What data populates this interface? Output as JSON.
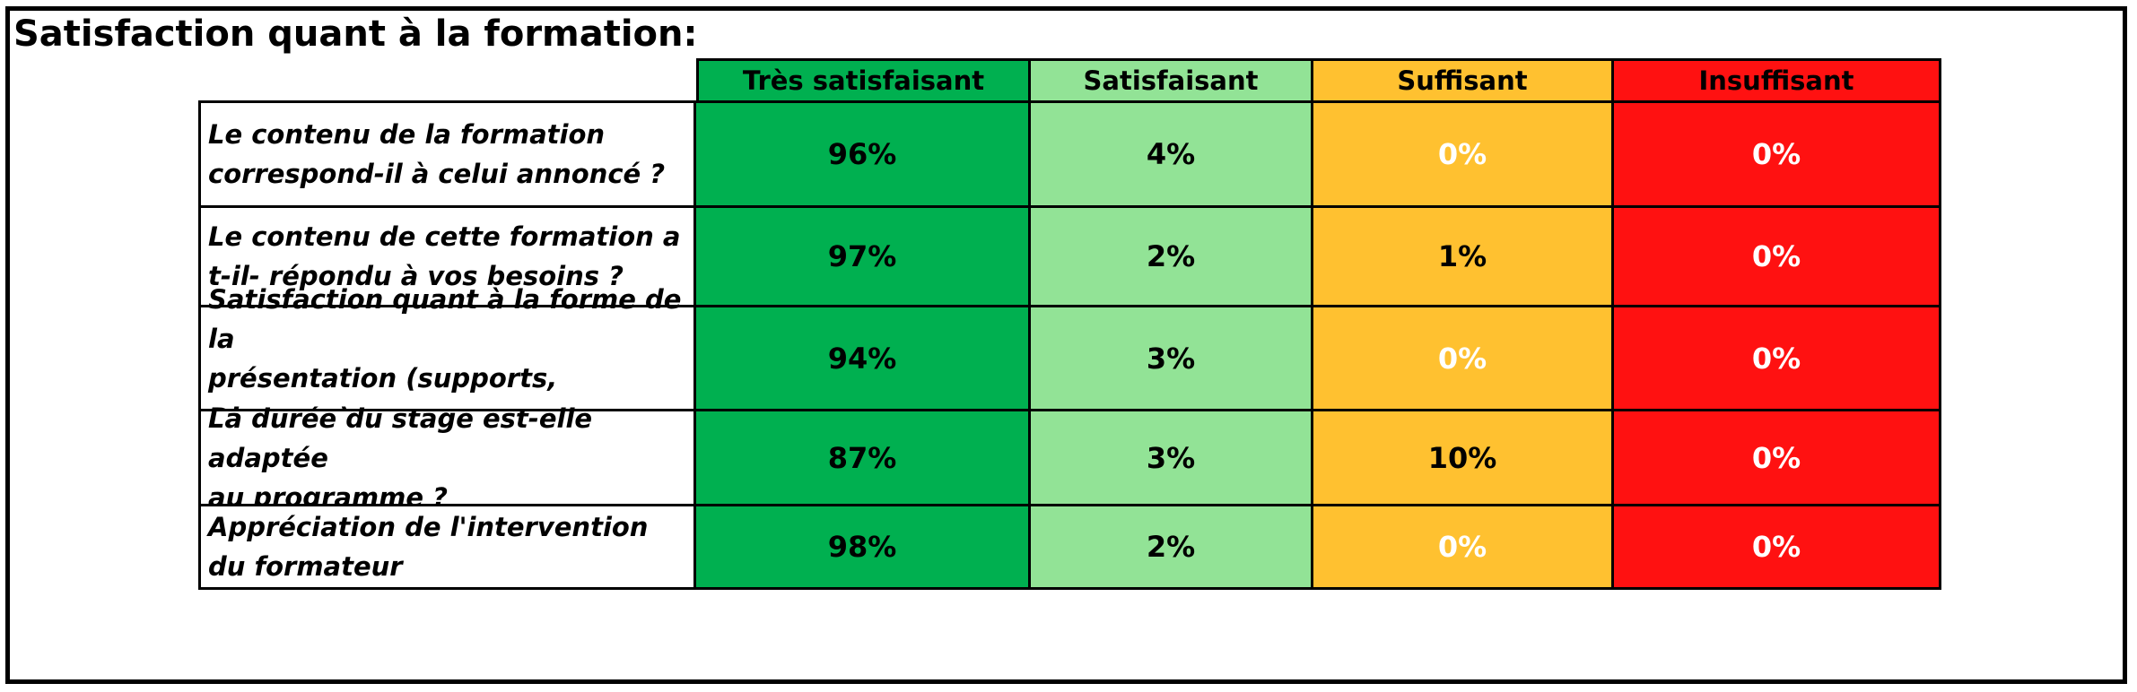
{
  "title": "Satisfaction quant à la formation:",
  "columns": [
    "Très satisfaisant",
    "Satisfaisant",
    "Suffisant",
    "Insuffisant"
  ],
  "colors": {
    "tres_satisfaisant": "#00b050",
    "satisfaisant": "#92e396",
    "suffisant": "#ffc130",
    "insuffisant": "#ff1111"
  },
  "rows": [
    {
      "question": "Le contenu de la formation\ncorrespond-il à celui annoncé ?",
      "values": [
        "96%",
        "4%",
        "0%",
        "0%"
      ]
    },
    {
      "question": "Le contenu de cette formation a\nt-il- répondu à vos besoins ?",
      "values": [
        "97%",
        "2%",
        "1%",
        "0%"
      ]
    },
    {
      "question": "Satisfaction quant à la forme de la\n présentation (supports, Diapos...)",
      "values": [
        "94%",
        "3%",
        "0%",
        "0%"
      ]
    },
    {
      "question": "La durée du stage est-elle adaptée\nau programme ?",
      "values": [
        "87%",
        "3%",
        "10%",
        "0%"
      ]
    },
    {
      "question": "Appréciation de l'intervention\ndu formateur",
      "values": [
        "98%",
        "2%",
        "0%",
        "0%"
      ]
    }
  ]
}
